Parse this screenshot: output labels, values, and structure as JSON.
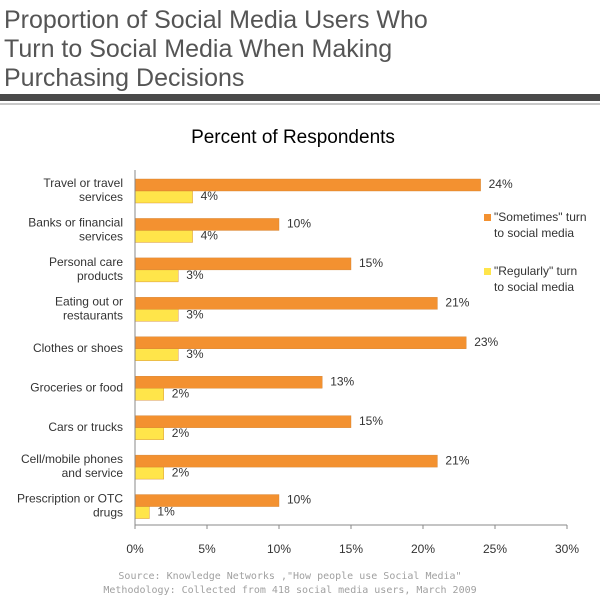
{
  "chart_data": {
    "type": "hbar",
    "title": "Proportion of Social Media Users Who\nTurn to Social Media When Making\nPurchasing Decisions",
    "subtitle": "Percent of Respondents",
    "categories": [
      "Travel or travel\nservices",
      "Banks or financial\nservices",
      "Personal care\nproducts",
      "Eating out or\nrestaurants",
      "Clothes or shoes",
      "Groceries or food",
      "Cars or trucks",
      "Cell/mobile phones\nand service",
      "Prescription or OTC\ndrugs"
    ],
    "series": [
      {
        "name": "\"Sometimes\" turn\nto social media",
        "color": "#f39130",
        "values": [
          24,
          10,
          15,
          21,
          23,
          13,
          15,
          21,
          10
        ],
        "value_labels": [
          "24%",
          "10%",
          "15%",
          "21%",
          "23%",
          "13%",
          "15%",
          "21%",
          "10%"
        ]
      },
      {
        "name": "\"Regularly\" turn\nto social media",
        "color": "#ffe54a",
        "values": [
          4,
          4,
          3,
          3,
          3,
          2,
          2,
          2,
          1
        ],
        "value_labels": [
          "4%",
          "4%",
          "3%",
          "3%",
          "3%",
          "2%",
          "2%",
          "2%",
          "1%"
        ]
      }
    ],
    "xlim": [
      0,
      30
    ],
    "xticks": [
      {
        "value": 0,
        "label": "0%"
      },
      {
        "value": 5,
        "label": "5%"
      },
      {
        "value": 10,
        "label": "10%"
      },
      {
        "value": 15,
        "label": "15%"
      },
      {
        "value": 20,
        "label": "20%"
      },
      {
        "value": 25,
        "label": "25%"
      },
      {
        "value": 30,
        "label": "30%"
      }
    ],
    "legend": "right",
    "notes": [
      "Source: Knowledge Networks ,\"How people use Social Media\"",
      "Methodology:  Collected from  418 social media users, March 2009"
    ]
  }
}
